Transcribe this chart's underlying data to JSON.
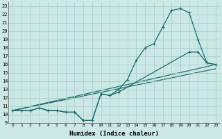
{
  "xlabel": "Humidex (Indice chaleur)",
  "xlim": [
    -0.5,
    23.5
  ],
  "ylim": [
    9,
    23.5
  ],
  "xticks": [
    0,
    1,
    2,
    3,
    4,
    5,
    6,
    7,
    8,
    9,
    10,
    11,
    12,
    13,
    14,
    15,
    16,
    17,
    18,
    19,
    20,
    21,
    22,
    23
  ],
  "yticks": [
    9,
    10,
    11,
    12,
    13,
    14,
    15,
    16,
    17,
    18,
    19,
    20,
    21,
    22,
    23
  ],
  "bg_color": "#cce8e5",
  "grid_color": "#a8d0cc",
  "line_color": "#1a6b6b",
  "line1_x": [
    0,
    1,
    2,
    3,
    4,
    5,
    6,
    7,
    8,
    9,
    10,
    11,
    12,
    13,
    14,
    15,
    16,
    17,
    18,
    19,
    20,
    21,
    22,
    23
  ],
  "line1_y": [
    10.5,
    10.5,
    10.5,
    10.8,
    10.5,
    10.5,
    10.3,
    10.3,
    9.3,
    9.3,
    12.5,
    12.3,
    13.0,
    14.2,
    16.5,
    18.0,
    18.5,
    20.5,
    22.5,
    22.7,
    22.2,
    19.0,
    16.2,
    16.0
  ],
  "line2_x": [
    0,
    1,
    2,
    3,
    4,
    5,
    6,
    7,
    8,
    9,
    10,
    11,
    12,
    20,
    21,
    22,
    23
  ],
  "line2_y": [
    10.5,
    10.5,
    10.5,
    10.8,
    10.5,
    10.5,
    10.3,
    10.3,
    9.3,
    9.3,
    12.5,
    12.3,
    12.7,
    17.5,
    17.5,
    16.2,
    16.0
  ],
  "line3_x": [
    0,
    23
  ],
  "line3_y": [
    10.5,
    16.0
  ],
  "line4_x": [
    0,
    23
  ],
  "line4_y": [
    10.5,
    15.5
  ]
}
